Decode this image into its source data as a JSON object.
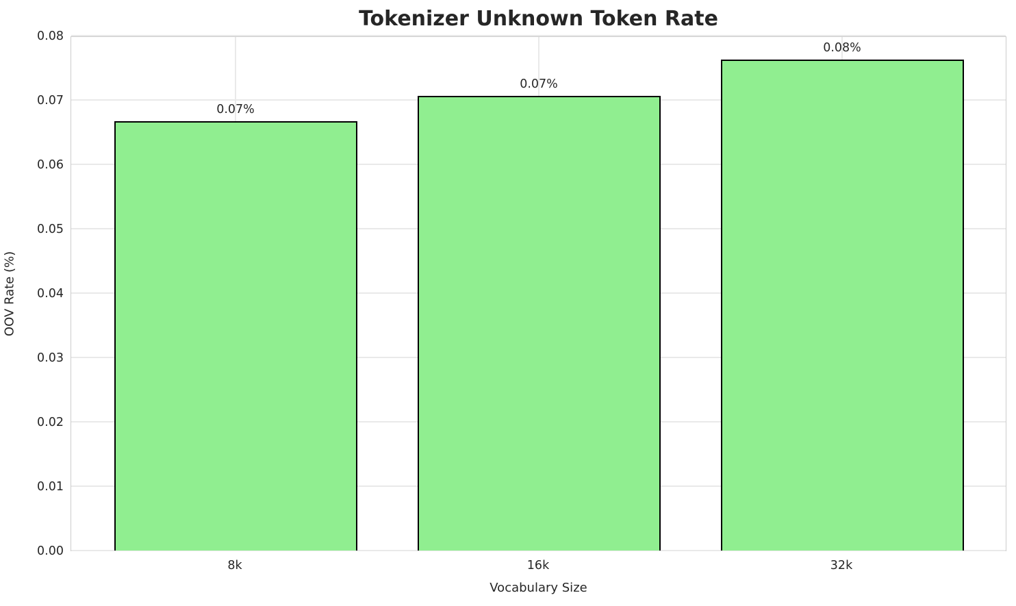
{
  "chart_data": {
    "type": "bar",
    "title": "Tokenizer Unknown Token Rate",
    "xlabel": "Vocabulary Size",
    "ylabel": "OOV Rate (%)",
    "categories": [
      "8k",
      "16k",
      "32k"
    ],
    "values": [
      0.0667,
      0.0706,
      0.0763
    ],
    "bar_labels": [
      "0.07%",
      "0.07%",
      "0.08%"
    ],
    "ylim": [
      0.0,
      0.08
    ],
    "ytick_labels": [
      "0.00",
      "0.01",
      "0.02",
      "0.03",
      "0.04",
      "0.05",
      "0.06",
      "0.07",
      "0.08"
    ],
    "ytick_values": [
      0.0,
      0.01,
      0.02,
      0.03,
      0.04,
      0.05,
      0.06,
      0.07,
      0.08
    ],
    "grid": "on",
    "legend": "none",
    "bar_fill_color": "#90EE90",
    "bar_edge_color": "#000000",
    "grid_color": "#e9e9e9",
    "text_color": "#262626",
    "background_color": "#ffffff"
  }
}
